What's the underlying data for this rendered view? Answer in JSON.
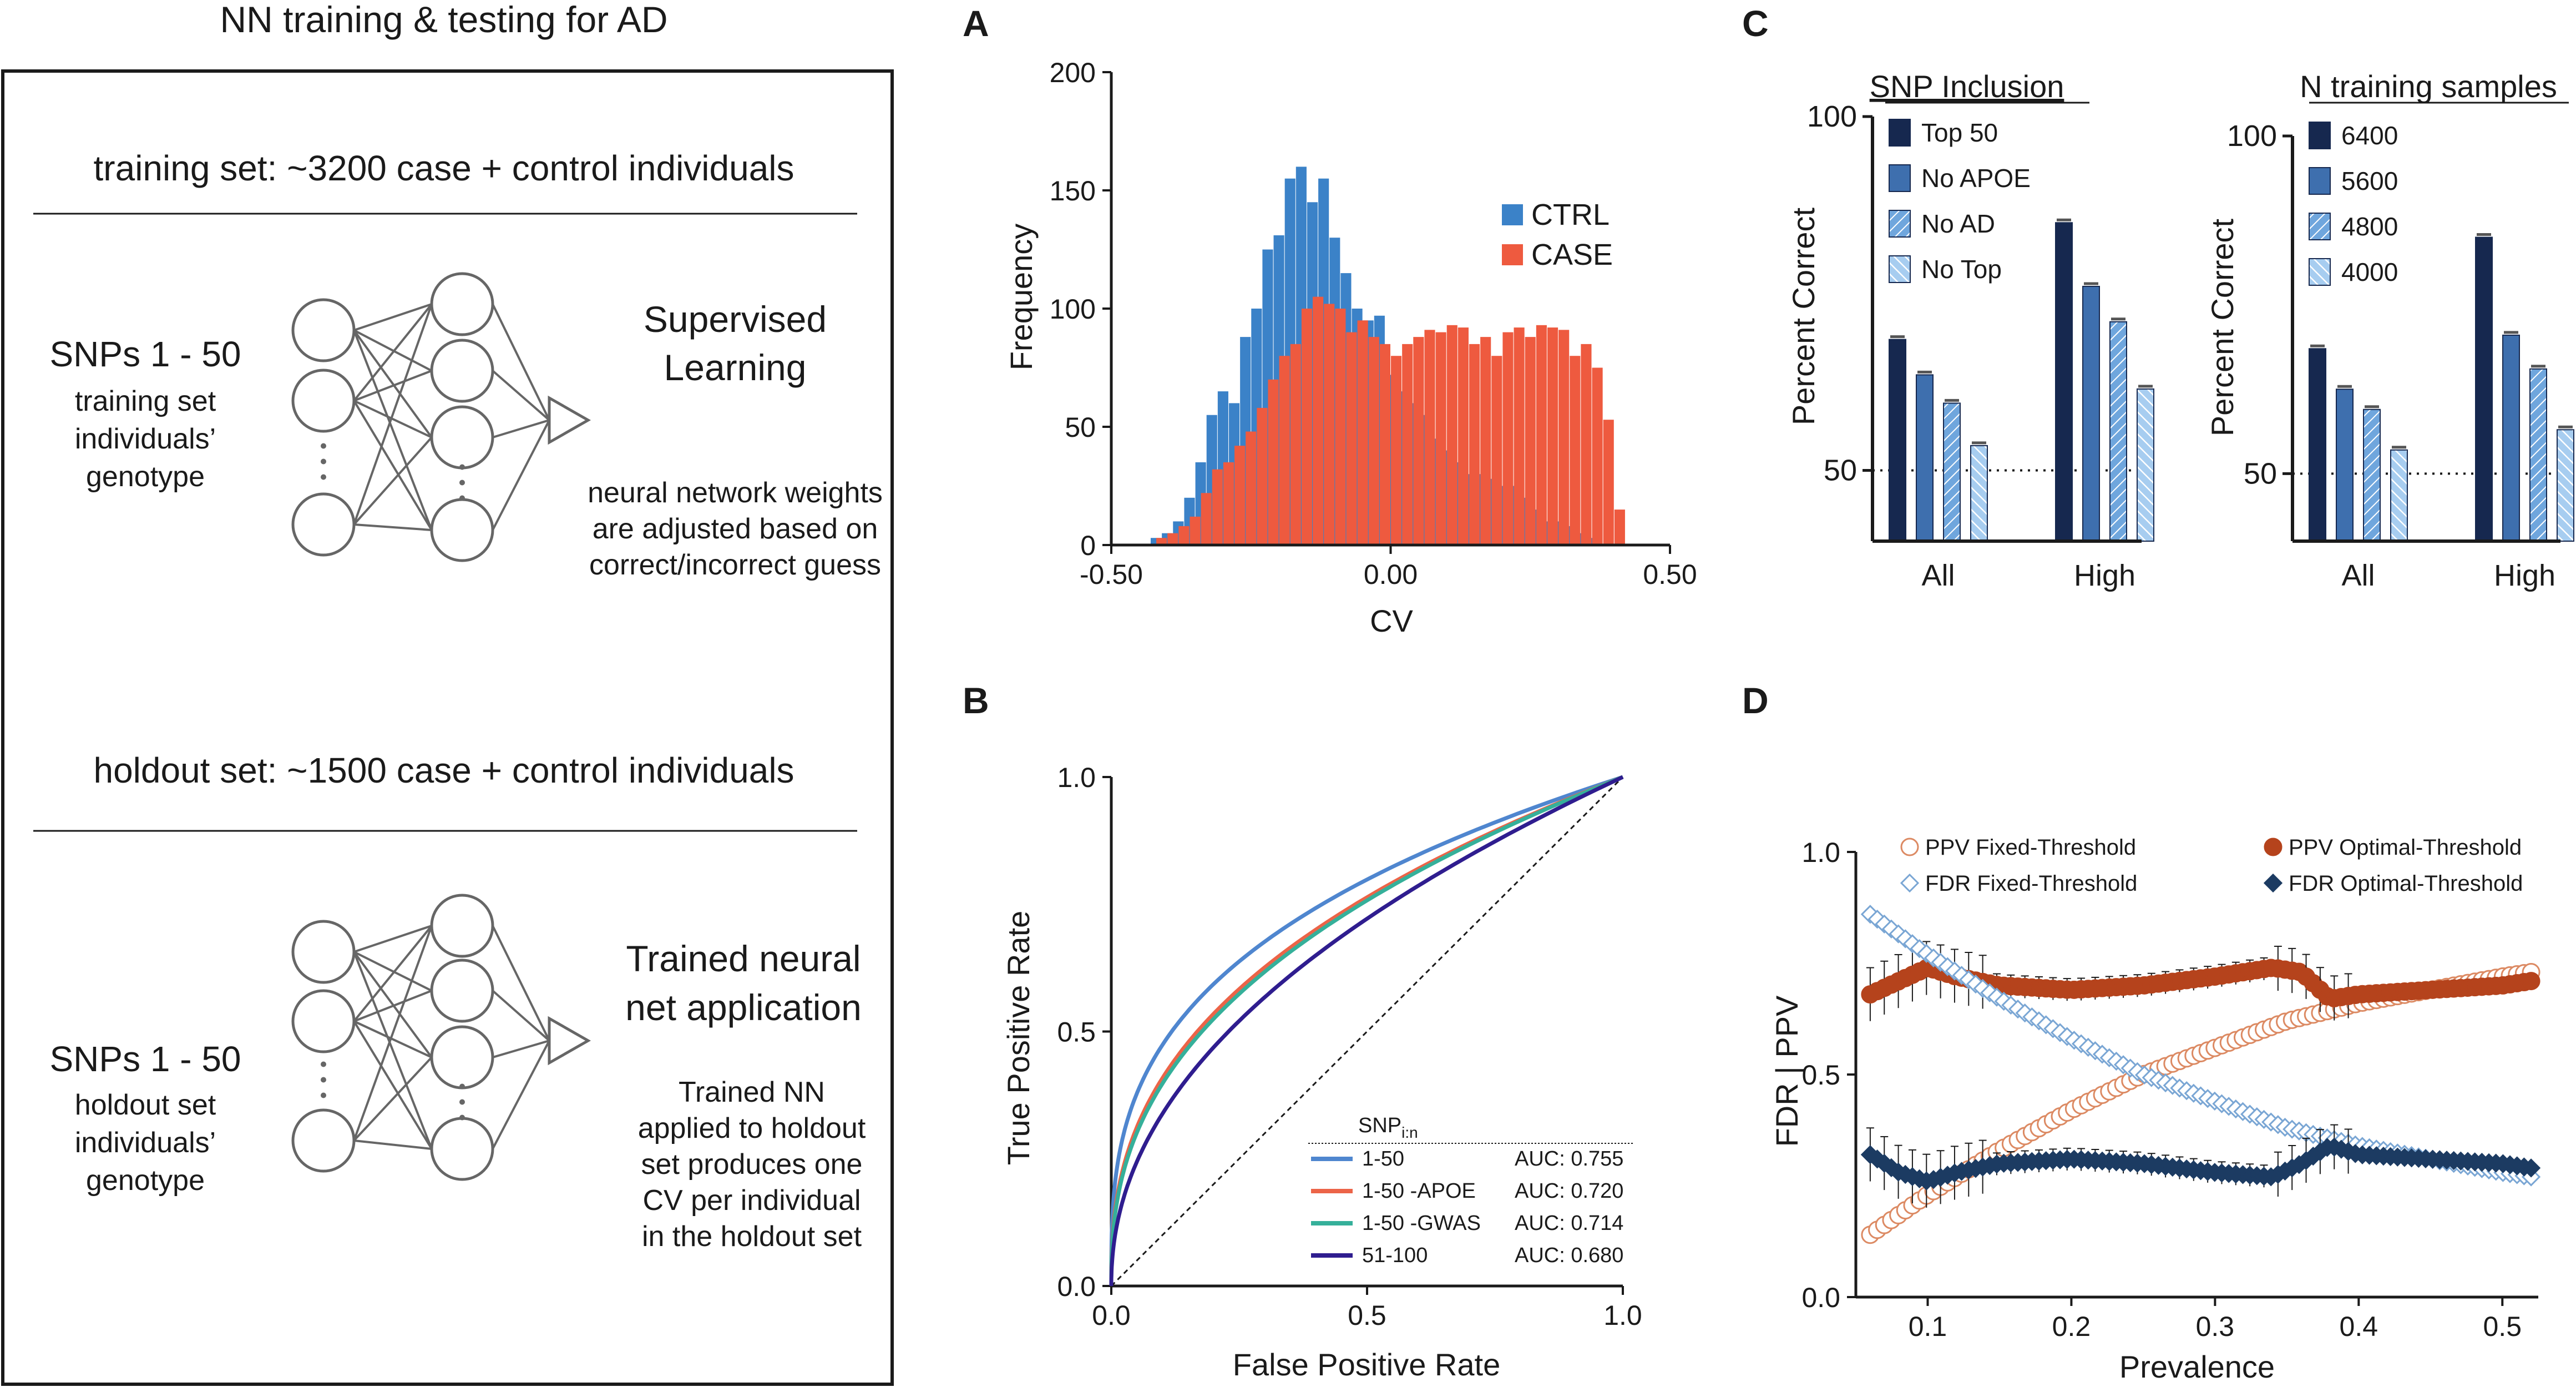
{
  "figure": {
    "colors": {
      "ink": "#1a1a1a",
      "gray": "#666666",
      "ctrl": "#3b82c8",
      "case": "#ee5a3f",
      "roc_150": "#4f86cf",
      "roc_apoe": "#ec6448",
      "roc_gwas": "#35b09a",
      "roc_51100": "#2f1d8f",
      "bar1": "#16284f",
      "bar2": "#3e6fae",
      "bar3": "#6fa6dd",
      "bar4": "#a7cdf0",
      "ppv": "#b5431c",
      "ppv_light": "#dc8a63",
      "fdr": "#1c3b62",
      "fdr_light": "#7aa6d4"
    }
  },
  "schematic": {
    "title": "NN training & testing for AD",
    "training": {
      "header": "training set: ~3200 case + control individuals",
      "snps": "SNPs 1 - 50",
      "sub": [
        "training set",
        "individuals’",
        "genotype"
      ],
      "method": [
        "Supervised",
        "Learning"
      ],
      "desc": [
        "neural network weights",
        "are adjusted based on",
        "correct/incorrect guess"
      ]
    },
    "holdout": {
      "header": "holdout set: ~1500 case + control individuals",
      "snps": "SNPs 1 - 50",
      "sub": [
        "holdout set",
        "individuals’",
        "genotype"
      ],
      "method": [
        "Trained neural",
        "net application"
      ],
      "desc": [
        "Trained NN",
        "applied to holdout",
        "set produces one",
        "CV per individual",
        "in the holdout set"
      ]
    }
  },
  "chart_data": [
    {
      "panel": "A",
      "type": "bar",
      "subtype": "histogram",
      "xlabel": "CV",
      "ylabel": "Frequency",
      "xlim": [
        -0.5,
        0.5
      ],
      "ylim": [
        0,
        200
      ],
      "xticks": [
        "-0.50",
        "0.00",
        "0.50"
      ],
      "yticks": [
        "0",
        "50",
        "100",
        "150",
        "200"
      ],
      "legend": [
        "CTRL",
        "CASE"
      ],
      "series": [
        {
          "name": "CTRL",
          "bins": [
            -0.42,
            -0.4,
            -0.38,
            -0.36,
            -0.34,
            -0.32,
            -0.3,
            -0.28,
            -0.26,
            -0.24,
            -0.22,
            -0.2,
            -0.18,
            -0.16,
            -0.14,
            -0.12,
            -0.1,
            -0.08,
            -0.06,
            -0.04,
            -0.02,
            0.0,
            0.02,
            0.04,
            0.06,
            0.08,
            0.1,
            0.12,
            0.14,
            0.16,
            0.18,
            0.2,
            0.22,
            0.24,
            0.26,
            0.28,
            0.3,
            0.32,
            0.34,
            0.36
          ],
          "values": [
            3,
            5,
            10,
            20,
            35,
            55,
            65,
            60,
            88,
            100,
            125,
            131,
            155,
            160,
            145,
            155,
            130,
            115,
            100,
            95,
            97,
            72,
            65,
            60,
            55,
            45,
            40,
            35,
            30,
            30,
            28,
            25,
            25,
            20,
            15,
            10,
            10,
            8,
            5,
            3
          ]
        },
        {
          "name": "CASE",
          "bins": [
            -0.41,
            -0.39,
            -0.37,
            -0.35,
            -0.33,
            -0.31,
            -0.29,
            -0.27,
            -0.25,
            -0.23,
            -0.21,
            -0.19,
            -0.17,
            -0.15,
            -0.13,
            -0.11,
            -0.09,
            -0.07,
            -0.05,
            -0.03,
            -0.01,
            0.01,
            0.03,
            0.05,
            0.07,
            0.09,
            0.11,
            0.13,
            0.15,
            0.17,
            0.19,
            0.21,
            0.23,
            0.25,
            0.27,
            0.29,
            0.31,
            0.33,
            0.35,
            0.37,
            0.39,
            0.41
          ],
          "values": [
            3,
            5,
            8,
            12,
            22,
            32,
            35,
            42,
            48,
            58,
            70,
            80,
            85,
            100,
            105,
            102,
            100,
            90,
            95,
            88,
            85,
            80,
            85,
            88,
            91,
            90,
            93,
            92,
            85,
            88,
            80,
            90,
            92,
            88,
            93,
            92,
            91,
            80,
            85,
            75,
            53,
            15
          ]
        }
      ]
    },
    {
      "panel": "B",
      "type": "line",
      "subtype": "roc",
      "xlabel": "False Positive Rate",
      "ylabel": "True Positive Rate",
      "xlim": [
        0,
        1
      ],
      "ylim": [
        0,
        1
      ],
      "xticks": [
        "0.0",
        "0.5",
        "1.0"
      ],
      "yticks": [
        "0.0",
        "0.5",
        "1.0"
      ],
      "legend_title": "SNPi:n",
      "legend_title_main": "SNP",
      "legend_title_sub": "i:n",
      "series": [
        {
          "name": "1-50",
          "auc_label": "AUC: 0.755",
          "auc": 0.755
        },
        {
          "name": "1-50 -APOE",
          "auc_label": "AUC: 0.720",
          "auc": 0.72
        },
        {
          "name": "1-50 -GWAS",
          "auc_label": "AUC: 0.714",
          "auc": 0.714
        },
        {
          "name": "51-100",
          "auc_label": "AUC: 0.680",
          "auc": 0.68
        }
      ]
    },
    {
      "panel": "C",
      "type": "bar",
      "title": "SNP Inclusion",
      "ylabel": "Percent Correct",
      "categories": [
        "All",
        "High"
      ],
      "ylim": [
        40,
        100
      ],
      "yticks": [
        "50",
        "100"
      ],
      "reference_line": 50,
      "series": [
        {
          "name": "Top 50",
          "values": [
            68.5,
            85
          ]
        },
        {
          "name": "No APOE",
          "values": [
            63.5,
            76
          ]
        },
        {
          "name": "No AD",
          "values": [
            59.5,
            71
          ]
        },
        {
          "name": "No Top",
          "values": [
            53.5,
            61.5
          ]
        }
      ]
    },
    {
      "panel": "C",
      "type": "bar",
      "title": "N training samples",
      "ylabel": "Percent Correct",
      "categories": [
        "All",
        "High"
      ],
      "ylim": [
        40,
        100
      ],
      "yticks": [
        "50",
        "100"
      ],
      "reference_line": 50,
      "series": [
        {
          "name": "6400",
          "values": [
            68.5,
            85
          ]
        },
        {
          "name": "5600",
          "values": [
            62.5,
            70.5
          ]
        },
        {
          "name": "4800",
          "values": [
            59.5,
            65.5
          ]
        },
        {
          "name": "4000",
          "values": [
            53.5,
            56.5
          ]
        }
      ]
    },
    {
      "panel": "D",
      "type": "scatter",
      "xlabel": "Prevalence",
      "ylabel": "FDR | PPV",
      "xlim": [
        0.05,
        0.525
      ],
      "ylim": [
        0,
        1
      ],
      "xticks": [
        "0.1",
        "0.2",
        "0.3",
        "0.4",
        "0.5"
      ],
      "yticks": [
        "0.0",
        "0.5",
        "1.0"
      ],
      "series": [
        {
          "name": "PPV Fixed-Threshold",
          "marker": "circle-open",
          "x": [
            0.06,
            0.1,
            0.15,
            0.2,
            0.25,
            0.3,
            0.35,
            0.4,
            0.45,
            0.5,
            0.52
          ],
          "y": [
            0.14,
            0.23,
            0.33,
            0.42,
            0.5,
            0.56,
            0.62,
            0.66,
            0.69,
            0.72,
            0.73
          ]
        },
        {
          "name": "PPV Optimal-Threshold",
          "marker": "circle-filled",
          "x": [
            0.06,
            0.08,
            0.1,
            0.12,
            0.15,
            0.2,
            0.25,
            0.3,
            0.34,
            0.36,
            0.38,
            0.4,
            0.45,
            0.5,
            0.52
          ],
          "y": [
            0.68,
            0.71,
            0.74,
            0.72,
            0.7,
            0.69,
            0.7,
            0.72,
            0.74,
            0.73,
            0.67,
            0.68,
            0.69,
            0.7,
            0.71
          ]
        },
        {
          "name": "FDR Fixed-Threshold",
          "marker": "diamond-open",
          "x": [
            0.06,
            0.1,
            0.15,
            0.2,
            0.25,
            0.3,
            0.35,
            0.4,
            0.45,
            0.5,
            0.52
          ],
          "y": [
            0.86,
            0.77,
            0.67,
            0.58,
            0.5,
            0.44,
            0.38,
            0.34,
            0.31,
            0.28,
            0.27
          ]
        },
        {
          "name": "FDR Optimal-Threshold",
          "marker": "diamond-filled",
          "x": [
            0.06,
            0.08,
            0.1,
            0.12,
            0.15,
            0.2,
            0.25,
            0.3,
            0.34,
            0.36,
            0.38,
            0.4,
            0.45,
            0.5,
            0.52
          ],
          "y": [
            0.32,
            0.28,
            0.26,
            0.28,
            0.3,
            0.31,
            0.3,
            0.28,
            0.27,
            0.3,
            0.34,
            0.32,
            0.31,
            0.3,
            0.29
          ]
        }
      ]
    }
  ]
}
